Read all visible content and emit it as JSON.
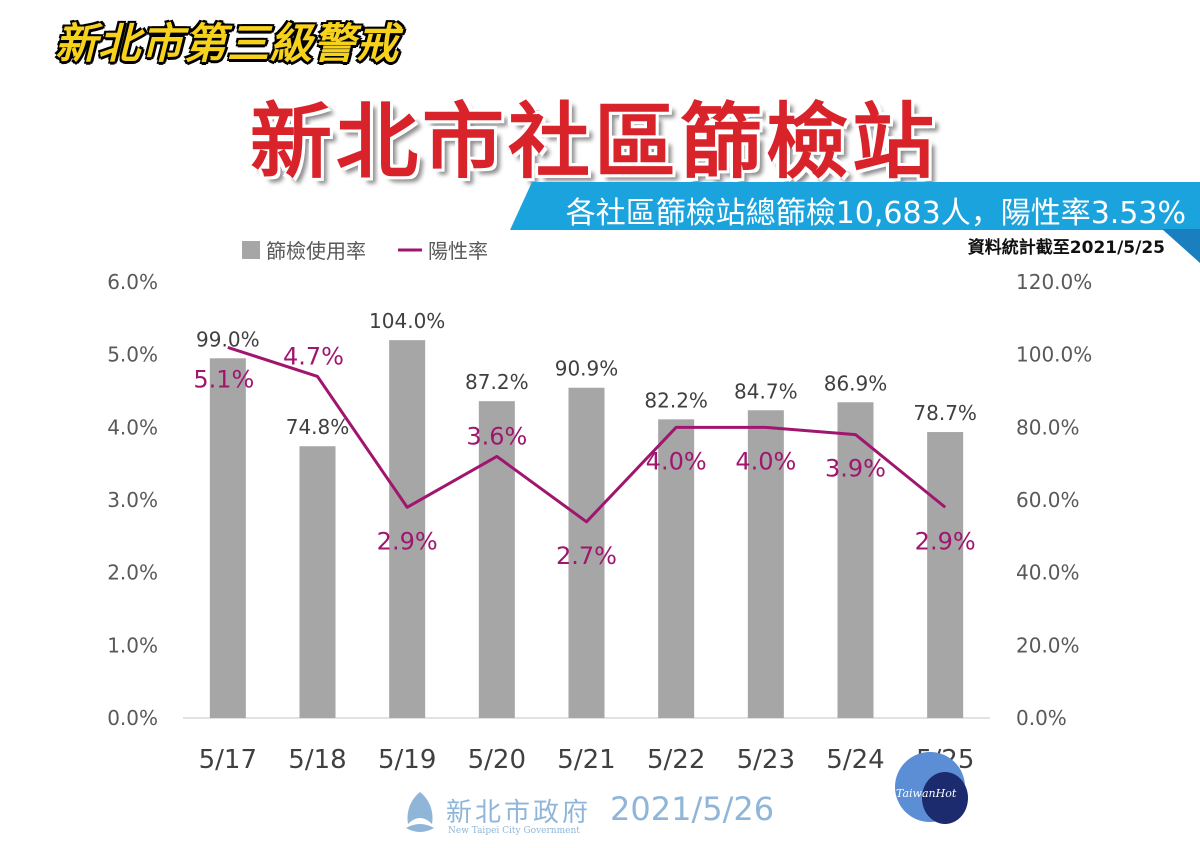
{
  "header": {
    "banner": "新北市第三級警戒",
    "title": "新北市社區篩檢站",
    "summary": "各社區篩檢站總篩檢10,683人，陽性率3.53%",
    "date_note": "資料統計截至2021/5/25"
  },
  "footer": {
    "org_name": "新北市政府",
    "org_english": "New Taipei City Government",
    "date": "2021/5/26",
    "watermark": "TaiwanHot"
  },
  "colors": {
    "bar": "#a6a6a6",
    "line": "#a0166f",
    "accent_blue": "#1aa3dc",
    "title_red": "#d8232a"
  },
  "chart_data": {
    "type": "bar",
    "categories": [
      "5/17",
      "5/18",
      "5/19",
      "5/20",
      "5/21",
      "5/22",
      "5/23",
      "5/24",
      "5/25"
    ],
    "series": [
      {
        "name": "篩檢使用率",
        "type": "bar",
        "axis": "right",
        "values": [
          99.0,
          74.8,
          104.0,
          87.2,
          90.9,
          82.2,
          84.7,
          86.9,
          78.7
        ],
        "labels": [
          "99.0%",
          "74.8%",
          "104.0%",
          "87.2%",
          "90.9%",
          "82.2%",
          "84.7%",
          "86.9%",
          "78.7%"
        ]
      },
      {
        "name": "陽性率",
        "type": "line",
        "axis": "left",
        "values": [
          5.1,
          4.7,
          2.9,
          3.6,
          2.7,
          4.0,
          4.0,
          3.9,
          2.9
        ],
        "labels": [
          "5.1%",
          "4.7%",
          "2.9%",
          "3.6%",
          "2.7%",
          "4.0%",
          "4.0%",
          "3.9%",
          "2.9%"
        ]
      }
    ],
    "y_left": {
      "ylim": [
        0,
        6
      ],
      "ticks": [
        "0.0%",
        "1.0%",
        "2.0%",
        "3.0%",
        "4.0%",
        "5.0%",
        "6.0%"
      ]
    },
    "y_right": {
      "ylim": [
        0,
        120
      ],
      "ticks": [
        "0.0%",
        "20.0%",
        "40.0%",
        "60.0%",
        "80.0%",
        "100.0%",
        "120.0%"
      ]
    },
    "legend": "top-left",
    "grid": false
  }
}
